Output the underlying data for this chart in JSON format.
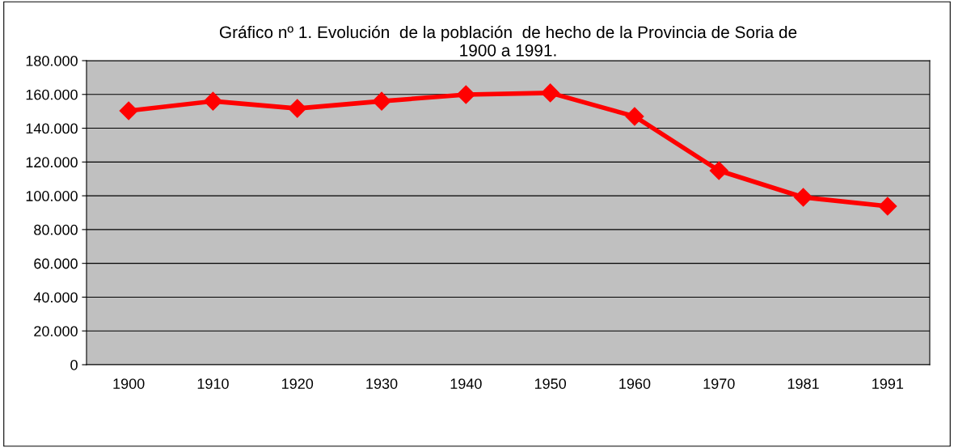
{
  "chart_data": {
    "type": "line",
    "title": "Gráfico nº 1. Evolución  de la población  de hecho de la Provincia de Soria de\n1900 a 1991.",
    "categories": [
      "1900",
      "1910",
      "1920",
      "1930",
      "1940",
      "1950",
      "1960",
      "1970",
      "1981",
      "1991"
    ],
    "series": [
      {
        "color": "#ff0000",
        "values": [
          150300,
          156000,
          151700,
          156000,
          159900,
          160900,
          147000,
          114900,
          99100,
          93800
        ]
      }
    ],
    "ylim": [
      0,
      180000
    ],
    "yticks": [
      0,
      {
        "value": 20000,
        "label": "20.000"
      },
      {
        "value": 40000,
        "label": "40.000"
      },
      {
        "value": 60000,
        "label": "60.000"
      },
      {
        "value": 80000,
        "label": "80.000"
      },
      {
        "value": 100000,
        "label": "100.000"
      },
      {
        "value": 120000,
        "label": "120.000"
      },
      {
        "value": 140000,
        "label": "140.000"
      },
      {
        "value": 160000,
        "label": "160.000"
      },
      {
        "value": 180000,
        "label": "180.000"
      }
    ],
    "grid": "y",
    "marker": "diamond",
    "line_style": "solid"
  }
}
